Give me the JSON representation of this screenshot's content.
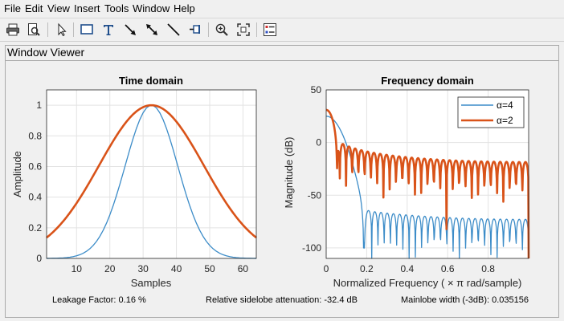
{
  "menu": [
    "File",
    "Edit",
    "View",
    "Insert",
    "Tools",
    "Window",
    "Help"
  ],
  "toolbar": {
    "buttons": [
      {
        "name": "print-icon"
      },
      {
        "name": "print-preview-icon"
      },
      {
        "name": "pointer-icon"
      },
      {
        "name": "rectangle-icon"
      },
      {
        "name": "text-icon"
      },
      {
        "name": "arrow-icon"
      },
      {
        "name": "double-arrow-icon"
      },
      {
        "name": "line-icon"
      },
      {
        "name": "pin-icon"
      },
      {
        "name": "zoom-in-icon"
      },
      {
        "name": "fit-icon"
      },
      {
        "name": "legend-icon"
      }
    ]
  },
  "panel": {
    "title": "Window Viewer"
  },
  "colors": {
    "alpha4": "#3c8cc8",
    "alpha2": "#d95319"
  },
  "chart_data": [
    {
      "type": "line",
      "title": "Time domain",
      "xlabel": "Samples",
      "ylabel": "Amplitude",
      "xlim": [
        1,
        64
      ],
      "ylim": [
        0,
        1.1
      ],
      "xticks": [
        10,
        20,
        30,
        40,
        50,
        60
      ],
      "yticks": [
        0,
        0.2,
        0.4,
        0.6,
        0.8,
        1
      ],
      "grid": true,
      "series": [
        {
          "name": "α=4",
          "kind": "gaussian",
          "alpha": 4,
          "N": 64
        },
        {
          "name": "α=2",
          "kind": "gaussian",
          "alpha": 2,
          "N": 64
        }
      ]
    },
    {
      "type": "line",
      "title": "Frequency domain",
      "xlabel": "Normalized Frequency  ( × π rad/sample)",
      "ylabel": "Magnitude (dB)",
      "xlim": [
        0,
        1
      ],
      "ylim": [
        -110,
        50
      ],
      "xticks": [
        0,
        0.2,
        0.4,
        0.6,
        0.8
      ],
      "yticks": [
        50,
        0,
        -50,
        -100
      ],
      "grid": true,
      "legend": {
        "position": "top-right",
        "entries": [
          "α=4",
          "α=2"
        ]
      },
      "series": [
        {
          "name": "α=4",
          "kind": "spectrum",
          "mainlobe_db": 25,
          "sidelobe_db": -65
        },
        {
          "name": "α=2",
          "kind": "spectrum",
          "mainlobe_db": 31,
          "sidelobe_db": -7
        }
      ]
    }
  ],
  "status": {
    "leakage": "Leakage Factor: 0.16 %",
    "sidelobe": "Relative sidelobe attenuation: -32.4 dB",
    "mainlobe": "Mainlobe width (-3dB): 0.035156"
  }
}
